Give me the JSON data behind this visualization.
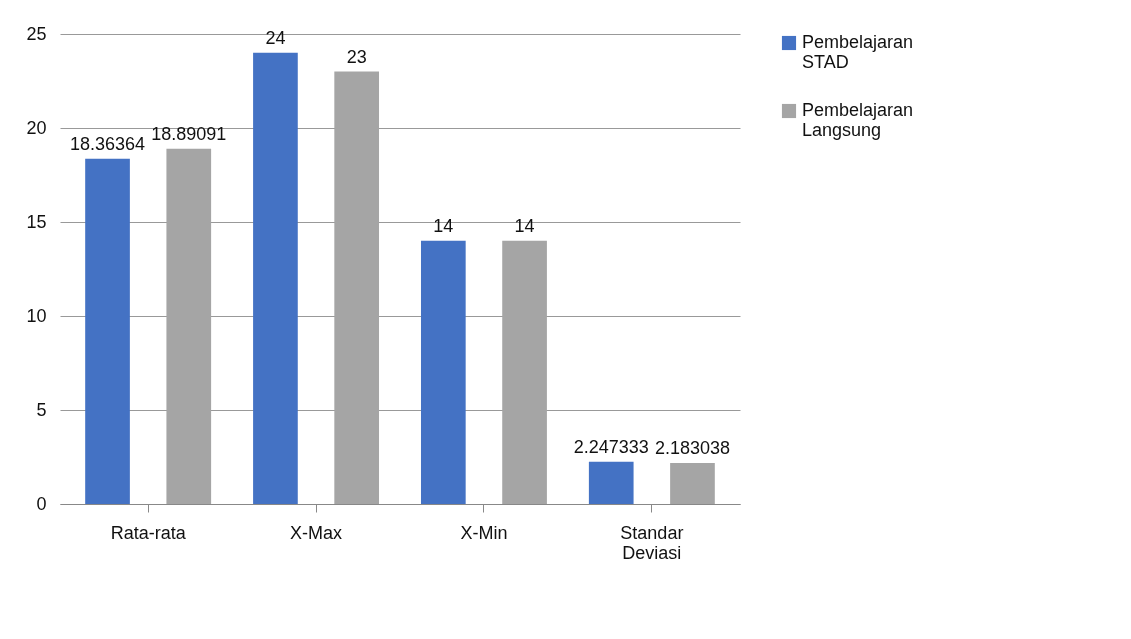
{
  "chart_data": {
    "type": "bar",
    "categories": [
      "Rata-rata",
      "X-Max",
      "X-Min",
      "Standar Deviasi"
    ],
    "series": [
      {
        "name": "Pembelajaran STAD",
        "color": "#4472c4",
        "values": [
          18.36364,
          24,
          14,
          2.247333
        ]
      },
      {
        "name": "Pembelajaran Langsung",
        "color": "#a5a5a5",
        "values": [
          18.89091,
          23,
          14,
          2.183038
        ]
      }
    ],
    "ylim": [
      0,
      25
    ],
    "yticks": [
      0,
      5,
      10,
      15,
      20,
      25
    ],
    "grid": "y",
    "legend": "right",
    "data_labels": true
  }
}
